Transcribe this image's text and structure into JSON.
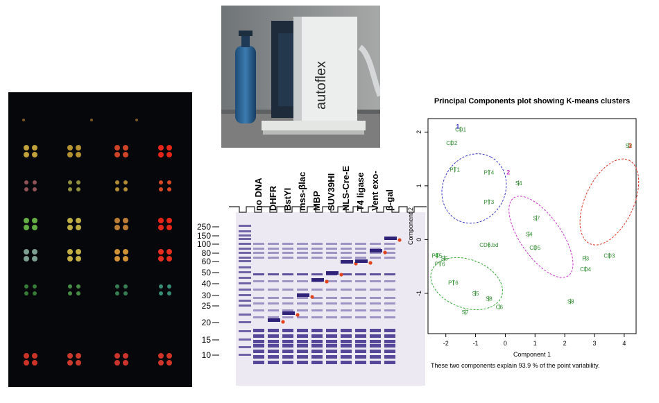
{
  "gel": {
    "lanes": [
      "no DNA",
      "DHFR",
      "BstYI",
      "mss-βlac",
      "MBP",
      "SUV39HI",
      "NLS-Cre-E",
      "T4 ligase",
      "Vent exo-",
      "β-gal"
    ],
    "markers": [
      "250",
      "150",
      "100",
      "80",
      "60",
      "50",
      "40",
      "30",
      "25",
      "20",
      "15",
      "10"
    ]
  },
  "pca": {
    "title": "Principal Components plot showing K-means clusters",
    "xlabel": "Component 1",
    "ylabel": "Component 2",
    "caption": "These two components explain 93.9 % of the point variability."
  },
  "instrument": {
    "brand_text": "autoflex"
  },
  "chart_data": {
    "type": "scatter",
    "title": "Principal Components plot showing K-means clusters",
    "xlabel": "Component 1",
    "ylabel": "Component 2",
    "xticks": [
      -2,
      -1,
      0,
      1,
      2,
      3,
      4
    ],
    "yticks": [
      -1,
      0,
      1,
      2
    ],
    "xlim": [
      -2.6,
      4.4
    ],
    "ylim": [
      -1.75,
      2.25
    ],
    "series": [
      {
        "color": "#3333cc",
        "points": [
          {
            "label": "CD1",
            "x": -1.5,
            "y": 2.05
          },
          {
            "label": "CD2",
            "x": -1.8,
            "y": 1.8
          },
          {
            "label": "PT1",
            "x": -1.7,
            "y": 1.3
          },
          {
            "label": "PT4",
            "x": -0.55,
            "y": 1.25
          },
          {
            "label": "PT3",
            "x": -0.55,
            "y": 0.7
          },
          {
            "label": "CD6.bd",
            "x": -0.55,
            "y": -0.1
          }
        ],
        "center": {
          "label": "1",
          "x": -1.6,
          "y": 2.1
        }
      },
      {
        "color": "#cc33cc",
        "points": [
          {
            "label": "S4",
            "x": 0.45,
            "y": 1.05
          },
          {
            "label": "S7",
            "x": 1.05,
            "y": 0.4
          },
          {
            "label": "S4",
            "x": 0.8,
            "y": 0.1
          },
          {
            "label": "CD5",
            "x": 1.0,
            "y": -0.15
          },
          {
            "label": "S8",
            "x": 2.2,
            "y": -1.15
          }
        ],
        "center": {
          "label": "2",
          "x": 0.1,
          "y": 1.25
        }
      },
      {
        "color": "#dd3322",
        "points": [
          {
            "label": "S2",
            "x": 4.15,
            "y": 1.75
          },
          {
            "label": "P3",
            "x": 2.7,
            "y": -0.35
          },
          {
            "label": "CD4",
            "x": 2.7,
            "y": -0.55
          },
          {
            "label": "CD3",
            "x": 3.5,
            "y": -0.3
          }
        ],
        "center": {
          "label": "3",
          "x": 4.2,
          "y": 1.75
        }
      },
      {
        "color": "#33aa33",
        "points": [
          {
            "label": "PT5",
            "x": -2.3,
            "y": -0.3
          },
          {
            "label": "S5",
            "x": -2.05,
            "y": -0.35
          },
          {
            "label": "PT6",
            "x": -2.2,
            "y": -0.45
          },
          {
            "label": "PT6",
            "x": -1.75,
            "y": -0.8
          },
          {
            "label": "S5",
            "x": -1.0,
            "y": -1.0
          },
          {
            "label": "S8",
            "x": -0.55,
            "y": -1.1
          },
          {
            "label": "C6",
            "x": -0.2,
            "y": -1.25
          },
          {
            "label": "S7",
            "x": -1.35,
            "y": -1.35
          }
        ],
        "center": {
          "label": "4",
          "x": -2.3,
          "y": -0.3
        }
      }
    ]
  }
}
